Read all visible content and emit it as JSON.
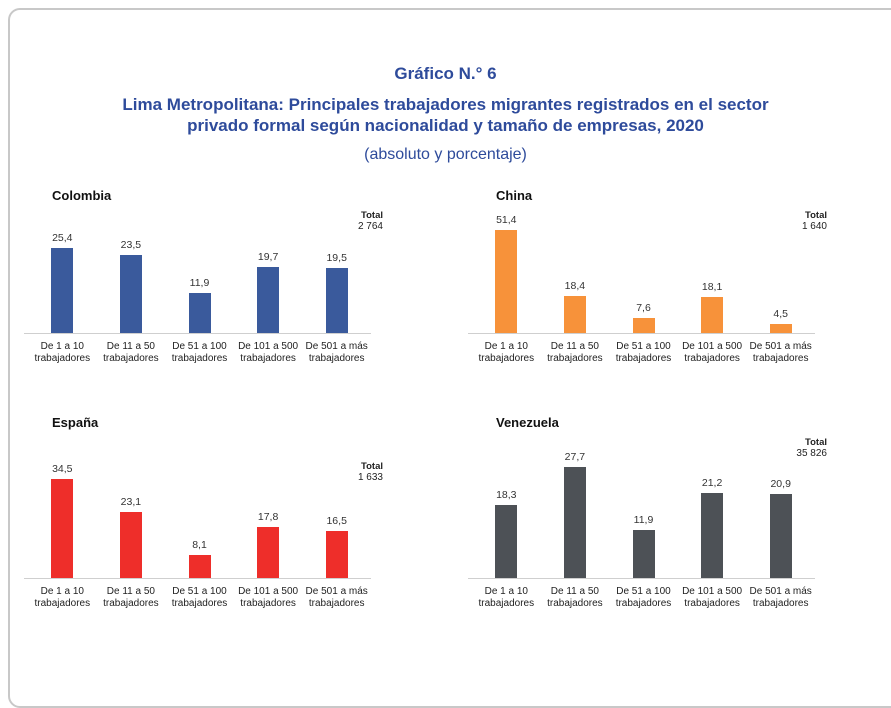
{
  "header": {
    "label": "Gráfico N.° 6",
    "title": [
      "Lima Metropolitana: Principales trabajadores migrantes registrados en el sector",
      "privado formal según nacionalidad y tamaño de empresas, 2020"
    ],
    "subtitle": "(absoluto y porcentaje)"
  },
  "chart_data": [
    {
      "type": "bar",
      "title": "Colombia",
      "color": "#3a5a9c",
      "categories": [
        "De 1 a 10 trabajadores",
        "De 11 a 50 trabajadores",
        "De 51 a 100 trabajadores",
        "De 101 a 500 trabajadores",
        "De 501 a más trabajadores"
      ],
      "values": [
        25.4,
        23.5,
        11.9,
        19.7,
        19.5
      ],
      "value_labels": [
        "25,4",
        "23,5",
        "11,9",
        "19,7",
        "19,5"
      ],
      "ylim": [
        0,
        36
      ],
      "total_title": "Total",
      "total": 2764,
      "total_label": "2 764"
    },
    {
      "type": "bar",
      "title": "China",
      "color": "#f7923a",
      "categories": [
        "De 1 a 10 trabajadores",
        "De 11 a 50 trabajadores",
        "De 51 a 100 trabajadores",
        "De 101 a 500 trabajadores",
        "De 501 a más trabajadores"
      ],
      "values": [
        51.4,
        18.4,
        7.6,
        18.1,
        4.5
      ],
      "value_labels": [
        "51,4",
        "18,4",
        "7,6",
        "18,1",
        "4,5"
      ],
      "ylim": [
        0,
        60
      ],
      "total_title": "Total",
      "total": 1640,
      "total_label": "1 640"
    },
    {
      "type": "bar",
      "title": "España",
      "color": "#ee2e2a",
      "categories": [
        "De 1 a 10 trabajadores",
        "De 11 a 50 trabajadores",
        "De 51 a 100 trabajadores",
        "De 101 a 500 trabajadores",
        "De 501 a más trabajadores"
      ],
      "values": [
        34.5,
        23.1,
        8.1,
        17.8,
        16.5
      ],
      "value_labels": [
        "34,5",
        "23,1",
        "8,1",
        "17,8",
        "16,5"
      ],
      "ylim": [
        0,
        42
      ],
      "total_title": "Total",
      "total": 1633,
      "total_label": "1 633"
    },
    {
      "type": "bar",
      "title": "Venezuela",
      "color": "#4d5156",
      "categories": [
        "De 1 a 10 trabajadores",
        "De 11 a 50 trabajadores",
        "De 51 a 100 trabajadores",
        "De 101 a 500 trabajadores",
        "De 501 a más trabajadores"
      ],
      "values": [
        18.3,
        27.7,
        11.9,
        21.2,
        20.9
      ],
      "value_labels": [
        "18,3",
        "27,7",
        "11,9",
        "21,2",
        "20,9"
      ],
      "ylim": [
        0,
        30
      ],
      "total_title": "Total",
      "total": 35826,
      "total_label": "35 826"
    }
  ]
}
